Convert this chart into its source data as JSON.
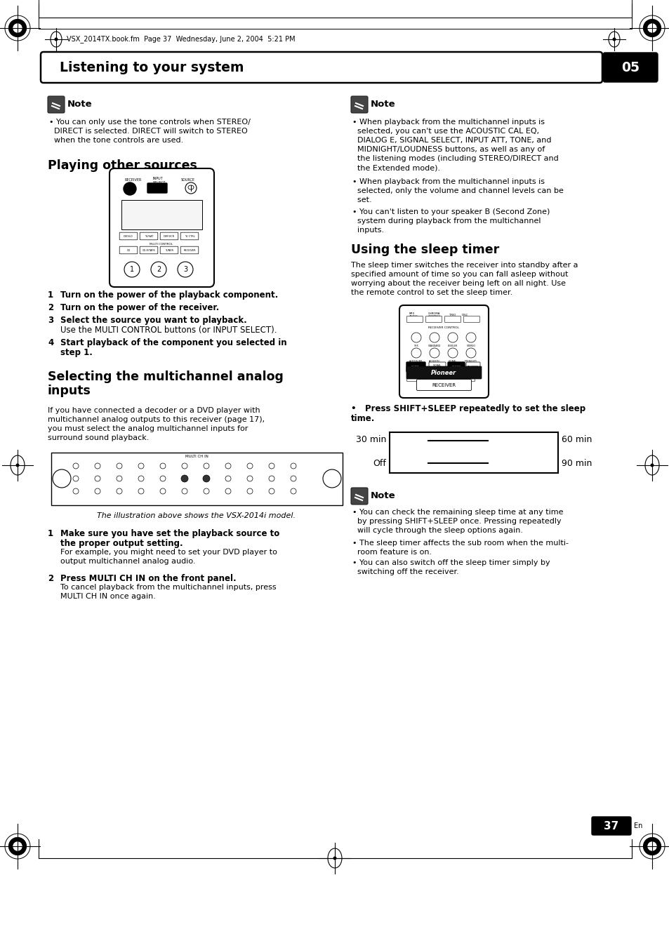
{
  "page_title": "Listening to your system",
  "chapter_num": "05",
  "header_text": "VSX_2014TX.book.fm  Page 37  Wednesday, June 2, 2004  5:21 PM",
  "page_num": "37",
  "page_num_sub": "En",
  "bg_color": "#ffffff",
  "left_note_bullet": "You can only use the tone controls when STEREO/\nDIRECT is selected. DIRECT will switch to STEREO\nwhen the tone controls are used.",
  "section1_title": "Playing other sources",
  "steps": [
    {
      "num": "1",
      "text": "Turn on the power of the playback component.",
      "bold": true
    },
    {
      "num": "2",
      "text": "Turn on the power of the receiver.",
      "bold": true
    },
    {
      "num": "3",
      "text": "Select the source you want to playback.",
      "bold": true,
      "normal": "Use the MULTI CONTROL buttons (or INPUT SELECT)."
    },
    {
      "num": "4",
      "text": "Start playback of the component you selected in\nstep 1.",
      "bold": true
    }
  ],
  "section2_title_line1": "Selecting the multichannel analog",
  "section2_title_line2": "inputs",
  "section2_intro": "If you have connected a decoder or a DVD player with\nmultichannel analog outputs to this receiver (page 17),\nyou must select the analog multichannel inputs for\nsurround sound playback.",
  "caption": "The illustration above shows the VSX-2014i model.",
  "sec2_steps": [
    {
      "num": "1",
      "bold": "Make sure you have set the playback source to\nthe proper output setting.",
      "normal": "For example, you might need to set your DVD player to\noutput multichannel analog audio."
    },
    {
      "num": "2",
      "bold": "Press MULTI CH IN on the front panel.",
      "normal": "To cancel playback from the multichannel inputs, press\nMULTI CH IN once again."
    }
  ],
  "right_note_bullets": [
    "When playback from the multichannel inputs is\nselected, you can't use the ACOUSTIC CAL EQ,\nDIALOG E, SIGNAL SELECT, INPUT ATT, TONE, and\nMIDNIGHT/LOUDNESS buttons, as well as any of\nthe listening modes (including STEREO/DIRECT and\nthe Extended mode).",
    "When playback from the multichannel inputs is\nselected, only the volume and channel levels can be\nset.",
    "You can't listen to your speaker B (Second Zone)\nsystem during playback from the multichannel\ninputs."
  ],
  "sleep_title": "Using the sleep timer",
  "sleep_intro": "The sleep timer switches the receiver into standby after a\nspecified amount of time so you can fall asleep without\nworrying about the receiver being left on all night. Use\nthe remote control to set the sleep timer.",
  "sleep_bullet": "Press SHIFT+SLEEP repeatedly to set the sleep\ntime.",
  "sleep_30": "30 min",
  "sleep_60": "60 min",
  "sleep_off": "Off",
  "sleep_90": "90 min",
  "note2_bullets": [
    "You can check the remaining sleep time at any time\nby pressing SHIFT+SLEEP once. Pressing repeatedly\nwill cycle through the sleep options again.",
    "The sleep timer affects the sub room when the multi-\nroom feature is on.",
    "You can also switch off the sleep timer simply by\nswitching off the receiver."
  ]
}
